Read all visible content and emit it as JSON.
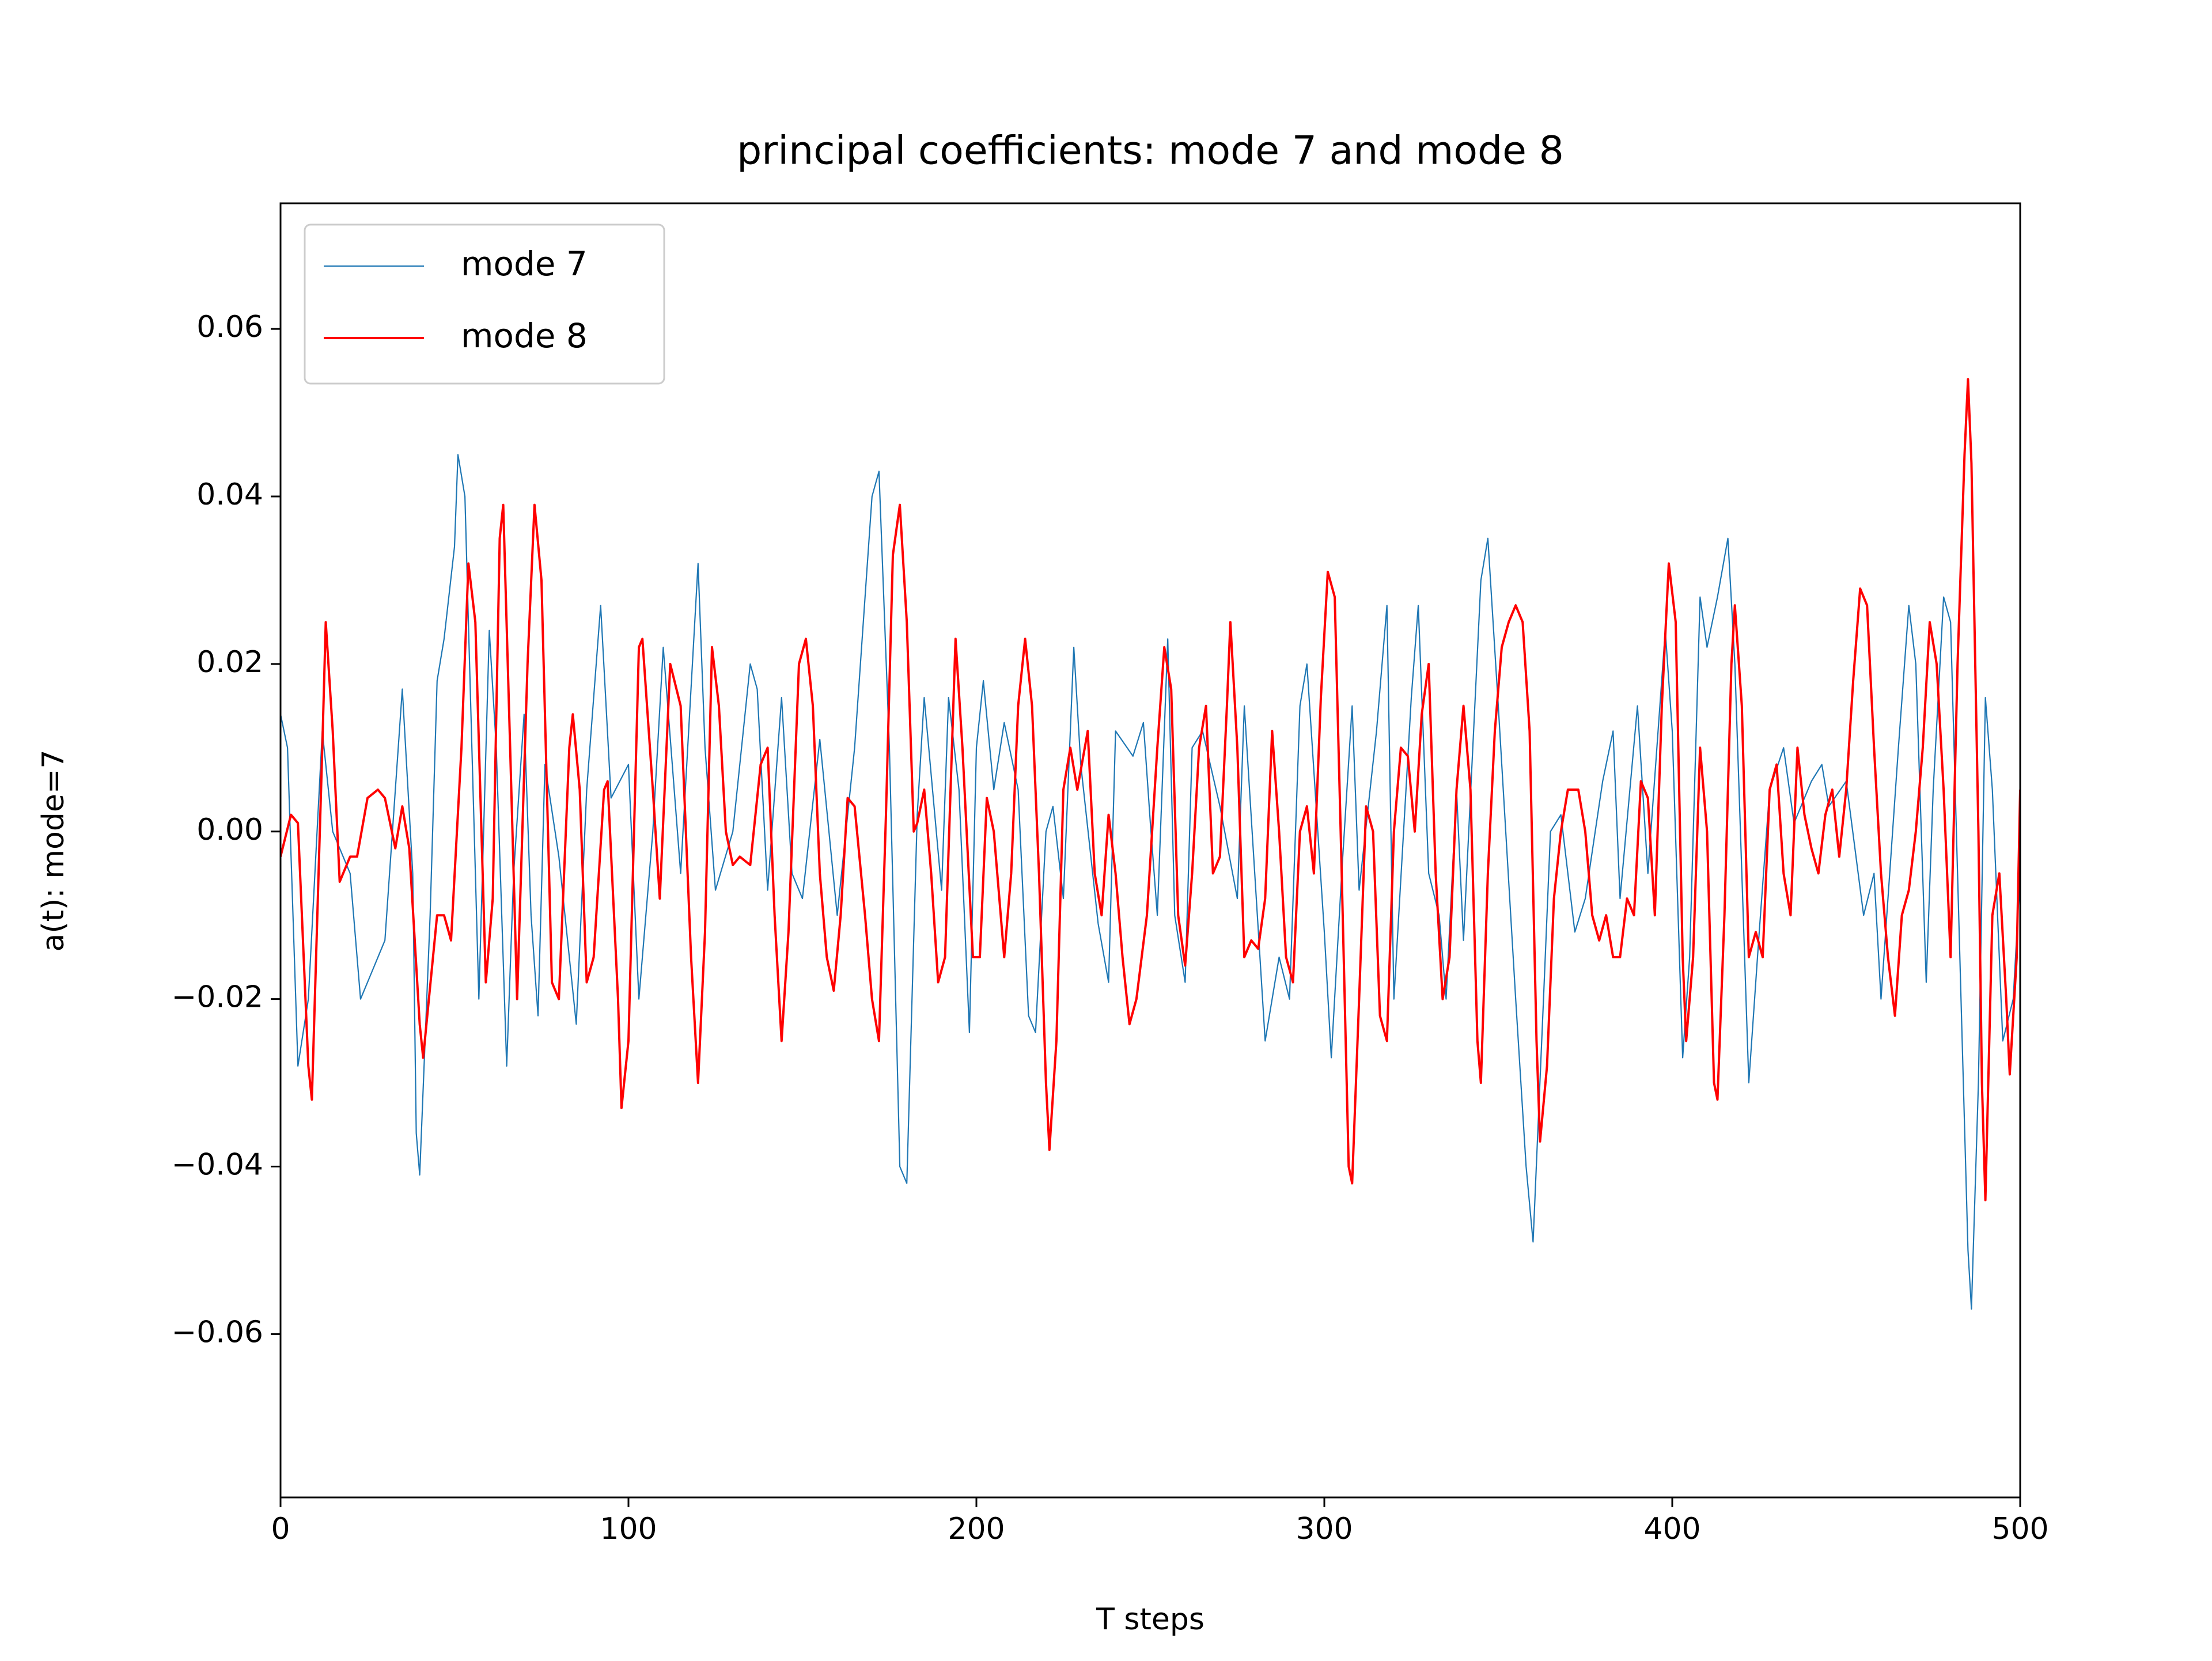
{
  "chart_data": {
    "type": "line",
    "title": "principal coefficients: mode 7 and mode 8",
    "xlabel": "T steps",
    "ylabel": "a(t): mode=7",
    "xlim": [
      0,
      500
    ],
    "xticks": [
      0,
      100,
      200,
      300,
      400,
      500
    ],
    "ylim": [
      -0.0795,
      0.075
    ],
    "yticks": [
      {
        "value": -0.06,
        "label": "−0.06"
      },
      {
        "value": -0.04,
        "label": "−0.04"
      },
      {
        "value": -0.02,
        "label": "−0.02"
      },
      {
        "value": 0,
        "label": "0.00"
      },
      0.02,
      0.04,
      0.06
    ],
    "legend": "upper left",
    "grid": false,
    "series": [
      {
        "name": "mode 7",
        "color": "#1f77b4",
        "x": [
          0,
          2,
          5,
          8,
          12,
          15,
          18,
          20,
          23,
          27,
          30,
          33,
          35,
          38,
          39,
          40,
          43,
          45,
          47,
          50,
          51,
          53,
          55,
          57,
          60,
          62,
          65,
          67,
          70,
          72,
          74,
          76,
          80,
          85,
          88,
          92,
          95,
          100,
          103,
          107,
          110,
          115,
          120,
          122,
          125,
          130,
          135,
          137,
          140,
          144,
          147,
          150,
          155,
          160,
          165,
          170,
          172,
          175,
          178,
          180,
          183,
          185,
          190,
          192,
          195,
          198,
          200,
          202,
          205,
          208,
          212,
          215,
          217,
          220,
          222,
          225,
          228,
          230,
          235,
          238,
          240,
          245,
          248,
          250,
          252,
          255,
          257,
          260,
          262,
          265,
          270,
          275,
          277,
          280,
          283,
          287,
          290,
          293,
          295,
          300,
          302,
          305,
          308,
          310,
          315,
          318,
          320,
          325,
          327,
          330,
          333,
          335,
          338,
          340,
          345,
          347,
          350,
          355,
          358,
          360,
          363,
          365,
          368,
          372,
          375,
          380,
          383,
          385,
          390,
          393,
          398,
          400,
          403,
          405,
          408,
          410,
          413,
          416,
          418,
          422,
          425,
          428,
          432,
          435,
          440,
          443,
          445,
          450,
          455,
          458,
          460,
          465,
          468,
          470,
          473,
          475,
          478,
          480,
          483,
          485,
          486,
          488,
          490,
          492,
          495,
          498,
          500
        ],
        "values": [
          0.014,
          0.01,
          -0.028,
          -0.02,
          0.012,
          0,
          -0.003,
          -0.005,
          -0.02,
          -0.016,
          -0.013,
          0.005,
          0.017,
          -0.005,
          -0.036,
          -0.041,
          -0.01,
          0.018,
          0.023,
          0.034,
          0.045,
          0.04,
          0.01,
          -0.02,
          0.024,
          0.01,
          -0.028,
          -0.005,
          0.014,
          -0.01,
          -0.022,
          0.008,
          -0.003,
          -0.023,
          0.005,
          0.027,
          0.004,
          0.008,
          -0.02,
          0,
          0.022,
          -0.005,
          0.032,
          0.01,
          -0.007,
          0,
          0.02,
          0.017,
          -0.007,
          0.016,
          -0.005,
          -0.008,
          0.011,
          -0.01,
          0.01,
          0.04,
          0.043,
          0.01,
          -0.04,
          -0.042,
          0.002,
          0.016,
          -0.007,
          0.016,
          0.005,
          -0.024,
          0.01,
          0.018,
          0.005,
          0.013,
          0.005,
          -0.022,
          -0.024,
          0,
          0.003,
          -0.008,
          0.022,
          0.008,
          -0.011,
          -0.018,
          0.012,
          0.009,
          0.013,
          0.001,
          -0.01,
          0.023,
          -0.01,
          -0.018,
          0.01,
          0.012,
          0.003,
          -0.008,
          0.015,
          -0.005,
          -0.025,
          -0.015,
          -0.02,
          0.015,
          0.02,
          -0.012,
          -0.027,
          -0.005,
          0.015,
          -0.007,
          0.012,
          0.027,
          -0.02,
          0.016,
          0.027,
          -0.005,
          -0.01,
          -0.02,
          0.005,
          -0.013,
          0.03,
          0.035,
          0.015,
          -0.02,
          -0.04,
          -0.049,
          -0.02,
          0,
          0.002,
          -0.012,
          -0.008,
          0.006,
          0.012,
          -0.008,
          0.015,
          -0.005,
          0.024,
          0.012,
          -0.027,
          -0.015,
          0.028,
          0.022,
          0.028,
          0.035,
          0.02,
          -0.03,
          -0.012,
          0.005,
          0.01,
          0.001,
          0.006,
          0.008,
          0.003,
          0.006,
          -0.01,
          -0.005,
          -0.02,
          0.01,
          0.027,
          0.02,
          -0.018,
          0.005,
          0.028,
          0.025,
          -0.02,
          -0.05,
          -0.057,
          -0.03,
          0.016,
          0.005,
          -0.025,
          -0.02,
          -0.005
        ]
      },
      {
        "name": "mode 8",
        "color": "#ff0000",
        "x": [
          0,
          3,
          5,
          8,
          9,
          12,
          13,
          15,
          17,
          20,
          22,
          25,
          28,
          30,
          33,
          35,
          37,
          40,
          41,
          45,
          47,
          49,
          52,
          54,
          56,
          59,
          61,
          63,
          64,
          66,
          68,
          71,
          73,
          75,
          78,
          80,
          83,
          84,
          86,
          88,
          90,
          93,
          94,
          97,
          98,
          100,
          103,
          104,
          107,
          109,
          112,
          115,
          118,
          120,
          122,
          124,
          126,
          128,
          130,
          132,
          135,
          138,
          140,
          142,
          144,
          146,
          149,
          151,
          153,
          155,
          157,
          159,
          161,
          163,
          165,
          168,
          170,
          172,
          174,
          176,
          178,
          180,
          182,
          183,
          185,
          187,
          189,
          191,
          194,
          196,
          199,
          201,
          203,
          205,
          208,
          210,
          212,
          214,
          216,
          218,
          220,
          221,
          223,
          225,
          227,
          229,
          232,
          234,
          236,
          238,
          240,
          242,
          244,
          246,
          249,
          252,
          254,
          256,
          258,
          260,
          262,
          264,
          266,
          268,
          270,
          272,
          273,
          275,
          277,
          279,
          281,
          283,
          285,
          287,
          289,
          291,
          293,
          295,
          297,
          299,
          301,
          303,
          305,
          307,
          308,
          310,
          312,
          314,
          316,
          318,
          320,
          322,
          324,
          326,
          328,
          330,
          332,
          334,
          336,
          338,
          340,
          342,
          344,
          345,
          347,
          349,
          351,
          353,
          355,
          357,
          359,
          361,
          362,
          364,
          366,
          368,
          370,
          373,
          375,
          377,
          379,
          381,
          383,
          385,
          387,
          389,
          391,
          393,
          395,
          397,
          399,
          401,
          403,
          404,
          406,
          408,
          410,
          412,
          413,
          415,
          417,
          418,
          420,
          422,
          424,
          426,
          428,
          430,
          432,
          434,
          436,
          438,
          440,
          442,
          444,
          446,
          448,
          450,
          452,
          454,
          456,
          458,
          460,
          462,
          464,
          466,
          468,
          470,
          472,
          474,
          476,
          478,
          480,
          482,
          484,
          485,
          486,
          488,
          489,
          490,
          492,
          494,
          496,
          497,
          499,
          500
        ],
        "values": [
          -0.003,
          0.002,
          0.001,
          -0.028,
          -0.032,
          0.01,
          0.025,
          0.012,
          -0.006,
          -0.003,
          -0.003,
          0.004,
          0.005,
          0.004,
          -0.002,
          0.003,
          -0.002,
          -0.023,
          -0.027,
          -0.01,
          -0.01,
          -0.013,
          0.01,
          0.032,
          0.025,
          -0.018,
          -0.008,
          0.035,
          0.039,
          0.01,
          -0.02,
          0.02,
          0.039,
          0.03,
          -0.018,
          -0.02,
          0.01,
          0.014,
          0.005,
          -0.018,
          -0.015,
          0.005,
          0.006,
          -0.02,
          -0.033,
          -0.025,
          0.022,
          0.023,
          0.005,
          -0.008,
          0.02,
          0.015,
          -0.015,
          -0.03,
          -0.012,
          0.022,
          0.015,
          0,
          -0.004,
          -0.003,
          -0.004,
          0.008,
          0.01,
          -0.01,
          -0.025,
          -0.012,
          0.02,
          0.023,
          0.015,
          -0.005,
          -0.015,
          -0.019,
          -0.01,
          0.004,
          0.003,
          -0.01,
          -0.02,
          -0.025,
          0.002,
          0.033,
          0.039,
          0.025,
          0,
          0.001,
          0.005,
          -0.005,
          -0.018,
          -0.015,
          0.023,
          0.01,
          -0.015,
          -0.015,
          0.004,
          0,
          -0.015,
          -0.005,
          0.015,
          0.023,
          0.015,
          -0.005,
          -0.03,
          -0.038,
          -0.025,
          0.005,
          0.01,
          0.005,
          0.012,
          -0.005,
          -0.01,
          0.002,
          -0.005,
          -0.015,
          -0.023,
          -0.02,
          -0.01,
          0.01,
          0.022,
          0.017,
          -0.01,
          -0.016,
          -0.005,
          0.01,
          0.015,
          -0.005,
          -0.003,
          0.015,
          0.025,
          0.01,
          -0.015,
          -0.013,
          -0.014,
          -0.008,
          0.012,
          0,
          -0.015,
          -0.018,
          0,
          0.003,
          -0.005,
          0.016,
          0.031,
          0.028,
          -0.005,
          -0.04,
          -0.042,
          -0.02,
          0.003,
          0,
          -0.022,
          -0.025,
          0,
          0.01,
          0.009,
          0,
          0.014,
          0.02,
          -0.005,
          -0.02,
          -0.015,
          0.005,
          0.015,
          0.005,
          -0.025,
          -0.03,
          -0.005,
          0.012,
          0.022,
          0.025,
          0.027,
          0.025,
          0.012,
          -0.025,
          -0.037,
          -0.028,
          -0.008,
          0,
          0.005,
          0.005,
          0,
          -0.01,
          -0.013,
          -0.01,
          -0.015,
          -0.015,
          -0.008,
          -0.01,
          0.006,
          0.004,
          -0.01,
          0.015,
          0.032,
          0.025,
          -0.015,
          -0.025,
          -0.015,
          0.01,
          0,
          -0.03,
          -0.032,
          -0.01,
          0.02,
          0.027,
          0.015,
          -0.015,
          -0.012,
          -0.015,
          0.005,
          0.008,
          -0.005,
          -0.01,
          0.01,
          0.002,
          -0.002,
          -0.005,
          0.002,
          0.005,
          -0.003,
          0.005,
          0.018,
          0.029,
          0.027,
          0.01,
          -0.005,
          -0.015,
          -0.022,
          -0.01,
          -0.007,
          0,
          0.01,
          0.025,
          0.02,
          0.005,
          -0.015,
          0.02,
          0.045,
          0.054,
          0.044,
          0,
          -0.03,
          -0.044,
          -0.01,
          -0.005,
          -0.02,
          -0.029,
          -0.015,
          0.005
        ]
      }
    ]
  }
}
